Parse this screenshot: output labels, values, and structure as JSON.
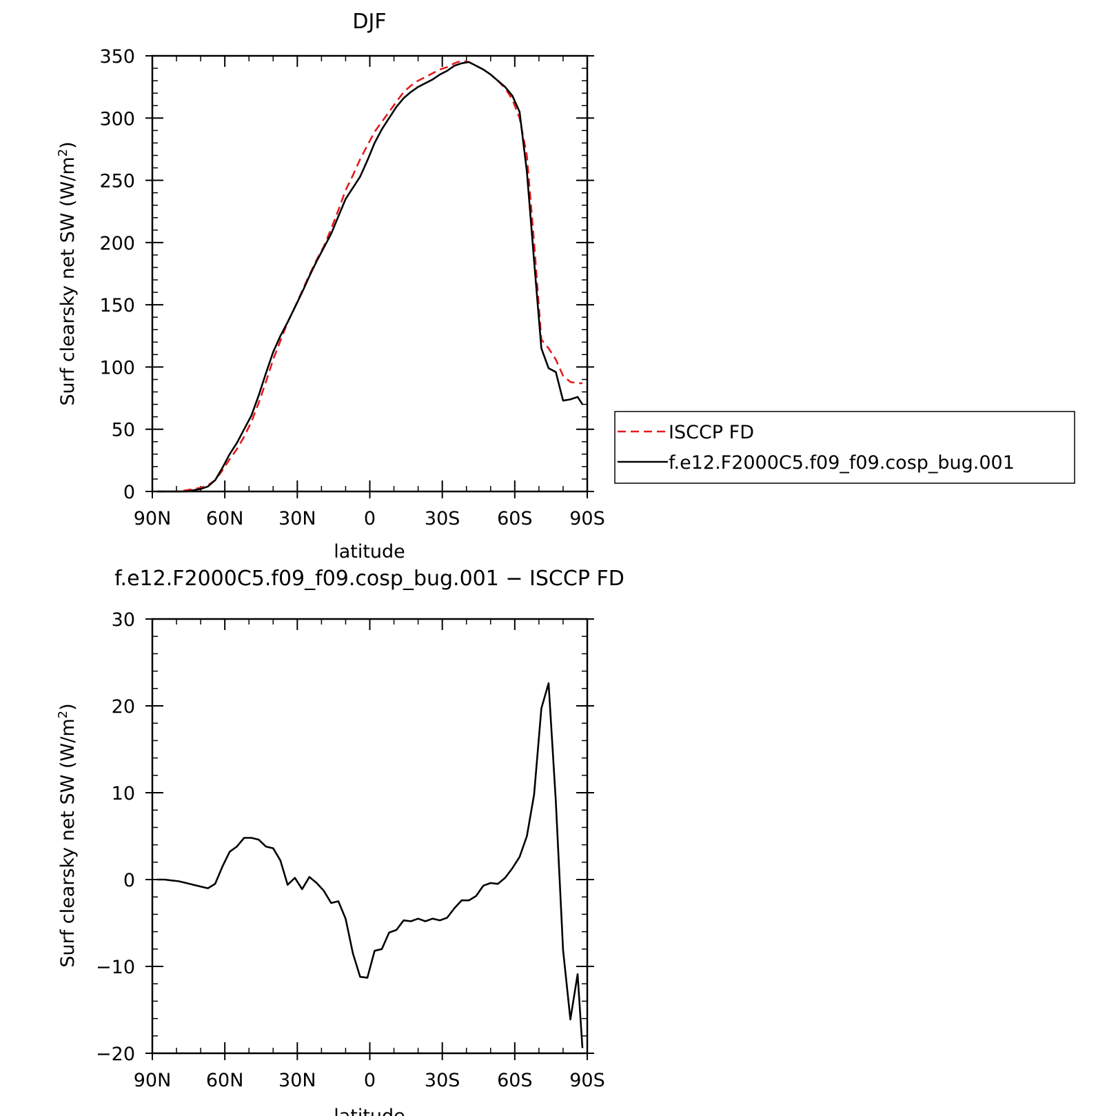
{
  "chart_data": [
    {
      "type": "line",
      "title": "DJF",
      "xlabel": "latitude",
      "ylabel": "Surf clearsky net SW (W/m²)",
      "ylabel_main": "Surf clearsky net SW (W/m",
      "ylabel_sup": "2",
      "ylabel_end": ")",
      "xlim": [
        90,
        -90
      ],
      "ylim": [
        0,
        350
      ],
      "xticks": [
        90,
        60,
        30,
        0,
        -30,
        -60,
        -90
      ],
      "xtick_labels": [
        "90N",
        "60N",
        "30N",
        "0",
        "30S",
        "60S",
        "90S"
      ],
      "yticks": [
        0,
        50,
        100,
        150,
        200,
        250,
        300,
        350
      ],
      "ytick_labels": [
        "0",
        "50",
        "100",
        "150",
        "200",
        "250",
        "300",
        "350"
      ],
      "grid": false,
      "legend_position": "right-outside",
      "series": [
        {
          "name": "ISCCP FD",
          "color": "#e41a1c",
          "dash": "dashed",
          "x": [
            88,
            85,
            82,
            79,
            76,
            73,
            70,
            67,
            64,
            61,
            58,
            55,
            52,
            49,
            46,
            43,
            40,
            37,
            34,
            31,
            28,
            25,
            22,
            19,
            16,
            13,
            10,
            7,
            4,
            1,
            -2,
            -5,
            -8,
            -11,
            -14,
            -17,
            -20,
            -23,
            -26,
            -29,
            -32,
            -35,
            -38,
            -41,
            -44,
            -47,
            -50,
            -53,
            -56,
            -59,
            -62,
            -65,
            -68,
            -71,
            -74,
            -77,
            -80,
            -83,
            -86,
            -88
          ],
          "y": [
            0,
            0,
            0,
            0,
            1,
            2,
            3,
            5,
            9,
            17,
            26,
            34,
            44,
            56,
            71,
            88,
            106,
            121,
            136,
            148,
            161,
            174,
            186,
            197,
            211,
            226,
            242,
            254,
            267,
            278,
            289,
            297,
            305,
            313,
            321,
            326,
            330,
            333,
            336,
            339,
            341,
            344,
            346,
            345,
            342,
            339,
            335,
            330,
            324,
            315,
            300,
            270,
            200,
            122,
            115,
            106,
            93,
            88,
            87,
            87
          ]
        },
        {
          "name": "f.e12.F2000C5.f09_f09.cosp_bug.001",
          "color": "#000000",
          "dash": "solid",
          "x": [
            88,
            85,
            82,
            79,
            76,
            73,
            70,
            67,
            64,
            61,
            58,
            55,
            52,
            49,
            46,
            43,
            40,
            37,
            34,
            31,
            28,
            25,
            22,
            19,
            16,
            13,
            10,
            7,
            4,
            1,
            -2,
            -5,
            -8,
            -11,
            -14,
            -17,
            -20,
            -23,
            -26,
            -29,
            -32,
            -35,
            -38,
            -41,
            -44,
            -47,
            -50,
            -53,
            -56,
            -59,
            -62,
            -65,
            -68,
            -71,
            -74,
            -77,
            -80,
            -83,
            -86,
            -88
          ],
          "y": [
            0,
            0,
            0,
            0,
            0,
            1,
            2,
            4,
            9,
            19,
            30,
            39,
            50,
            61,
            77,
            95,
            112,
            125,
            136,
            148,
            160,
            173,
            185,
            196,
            207,
            221,
            235,
            244,
            253,
            266,
            280,
            291,
            300,
            309,
            316,
            321,
            325,
            328,
            331,
            335,
            338,
            342,
            344,
            345,
            342,
            339,
            335,
            330,
            325,
            318,
            305,
            257,
            185,
            115,
            99,
            96,
            73,
            74,
            76,
            70
          ]
        }
      ]
    },
    {
      "type": "line",
      "title": "f.e12.F2000C5.f09_f09.cosp_bug.001 − ISCCP FD",
      "xlabel": "latitude",
      "ylabel": "Surf clearsky net SW (W/m²)",
      "ylabel_main": "Surf clearsky net SW (W/m",
      "ylabel_sup": "2",
      "ylabel_end": ")",
      "xlim": [
        90,
        -90
      ],
      "ylim": [
        -20,
        30
      ],
      "xticks": [
        90,
        60,
        30,
        0,
        -30,
        -60,
        -90
      ],
      "xtick_labels": [
        "90N",
        "60N",
        "30N",
        "0",
        "30S",
        "60S",
        "90S"
      ],
      "yticks": [
        -20,
        -10,
        0,
        10,
        20,
        30
      ],
      "ytick_labels": [
        "−20",
        "−10",
        "0",
        "10",
        "20",
        "30"
      ],
      "grid": false,
      "series": [
        {
          "color": "#000000",
          "dash": "solid",
          "x": [
            88,
            85,
            82,
            79,
            76,
            73,
            70,
            67,
            64,
            61,
            58,
            55,
            52,
            49,
            46,
            43,
            40,
            37,
            34,
            31,
            28,
            25,
            22,
            19,
            16,
            13,
            10,
            7,
            4,
            1,
            -2,
            -5,
            -8,
            -11,
            -14,
            -17,
            -20,
            -23,
            -26,
            -29,
            -32,
            -35,
            -38,
            -41,
            -44,
            -47,
            -50,
            -53,
            -56,
            -59,
            -62,
            -65,
            -68,
            -71,
            -74,
            -77,
            -80,
            -83,
            -86,
            -88
          ],
          "y": [
            0,
            0,
            -0.1,
            -0.2,
            -0.4,
            -0.6,
            -0.8,
            -1.0,
            -0.5,
            1.5,
            3.2,
            3.8,
            4.8,
            4.8,
            4.6,
            3.8,
            3.6,
            2.2,
            -0.6,
            0.2,
            -1.1,
            0.3,
            -0.4,
            -1.3,
            -2.7,
            -2.5,
            -4.5,
            -8.5,
            -11.2,
            -11.3,
            -8.2,
            -8.0,
            -6.1,
            -5.8,
            -4.7,
            -4.8,
            -4.5,
            -4.8,
            -4.5,
            -4.7,
            -4.4,
            -3.3,
            -2.4,
            -2.4,
            -1.9,
            -0.7,
            -0.4,
            -0.5,
            0.2,
            1.3,
            2.6,
            5.0,
            9.8,
            19.7,
            22.6,
            9.0,
            -8.1,
            -16.1,
            -10.9,
            -19.4
          ]
        }
      ]
    }
  ]
}
